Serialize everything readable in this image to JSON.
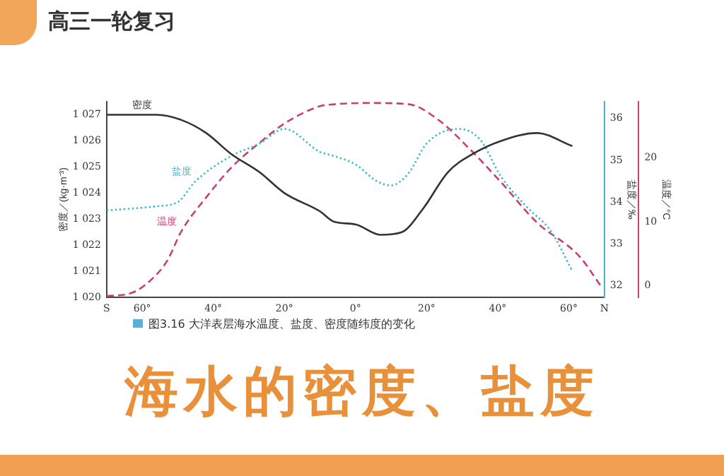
{
  "chart_data": {
    "type": "line",
    "title": "海水的密度、盐度",
    "subtitle": "高三一轮复习",
    "ylabel": "密度／(kg·m⁻³)",
    "y2label": "盐度／‰",
    "y3label": "温度／°C",
    "annotations": [
      "图3.16  大洋表层海水温度、盐度、密度随纬度的变化"
    ],
    "xlim": [
      -70,
      70
    ],
    "xticks": [
      {
        "value": -70,
        "label": "S"
      },
      {
        "value": -60,
        "label": "60°"
      },
      {
        "value": -40,
        "label": "40°"
      },
      {
        "value": -20,
        "label": "20°"
      },
      {
        "value": 0,
        "label": "0°"
      },
      {
        "value": 20,
        "label": "20°"
      },
      {
        "value": 40,
        "label": "40°"
      },
      {
        "value": 60,
        "label": "60°"
      },
      {
        "value": 70,
        "label": "N"
      }
    ],
    "ylim": [
      1020,
      1027.5
    ],
    "yticks": [
      {
        "value": 1020,
        "label": "1 020"
      },
      {
        "value": 1021,
        "label": "1 021"
      },
      {
        "value": 1022,
        "label": "1 022"
      },
      {
        "value": 1023,
        "label": "1 023"
      },
      {
        "value": 1024,
        "label": "1 024"
      },
      {
        "value": 1025,
        "label": "1 025"
      },
      {
        "value": 1026,
        "label": "1 026"
      },
      {
        "value": 1027,
        "label": "1 027"
      }
    ],
    "y2lim": [
      31.72,
      36.4
    ],
    "y2ticks": [
      32,
      33,
      34,
      35,
      36
    ],
    "y3lim": [
      -1.8,
      28.7
    ],
    "y3ticks": [
      0,
      10,
      20
    ],
    "grid": false,
    "legend": false,
    "marker": "none",
    "series": [
      {
        "name": "密度",
        "color": "#333333",
        "line_style": "solid",
        "x": [
          -70,
          -56,
          -49,
          -42,
          -35,
          -27,
          -20,
          -10,
          -6,
          0,
          7,
          13,
          19,
          26,
          33,
          41,
          51,
          61
        ],
        "values": [
          1027.0,
          1027.0,
          1026.8,
          1026.3,
          1025.5,
          1024.8,
          1024.0,
          1023.3,
          1022.9,
          1022.8,
          1022.4,
          1022.5,
          1023.4,
          1024.8,
          1025.5,
          1026.0,
          1026.3,
          1025.8
        ]
      },
      {
        "name": "盐度",
        "color": "#3fb8c8",
        "line_style": "dotted",
        "axis": "y2",
        "x": [
          -70,
          -56,
          -50,
          -45,
          -35,
          -27,
          -20,
          -10,
          -6,
          0,
          6,
          10,
          15,
          20,
          29,
          35,
          41,
          48,
          55,
          61
        ],
        "values": [
          33.8,
          33.9,
          34.0,
          34.5,
          35.1,
          35.4,
          35.75,
          35.2,
          35.1,
          34.9,
          34.5,
          34.4,
          34.7,
          35.4,
          35.75,
          35.5,
          34.6,
          33.9,
          33.3,
          32.35
        ]
      },
      {
        "name": "温度",
        "color": "#c8406e",
        "line_style": "dashed",
        "axis": "y3",
        "x": [
          -70,
          -63,
          -58,
          -53,
          -49,
          -42,
          -35,
          -27,
          -20,
          -10,
          -6,
          4,
          15,
          23,
          32,
          41,
          51,
          63,
          69
        ],
        "values": [
          -1.6,
          -1.1,
          0.7,
          3.9,
          8.5,
          13.8,
          18.4,
          22.3,
          25.3,
          28.0,
          28.3,
          28.5,
          28.3,
          26.0,
          21.4,
          16.1,
          9.9,
          4.6,
          0
        ]
      }
    ]
  }
}
